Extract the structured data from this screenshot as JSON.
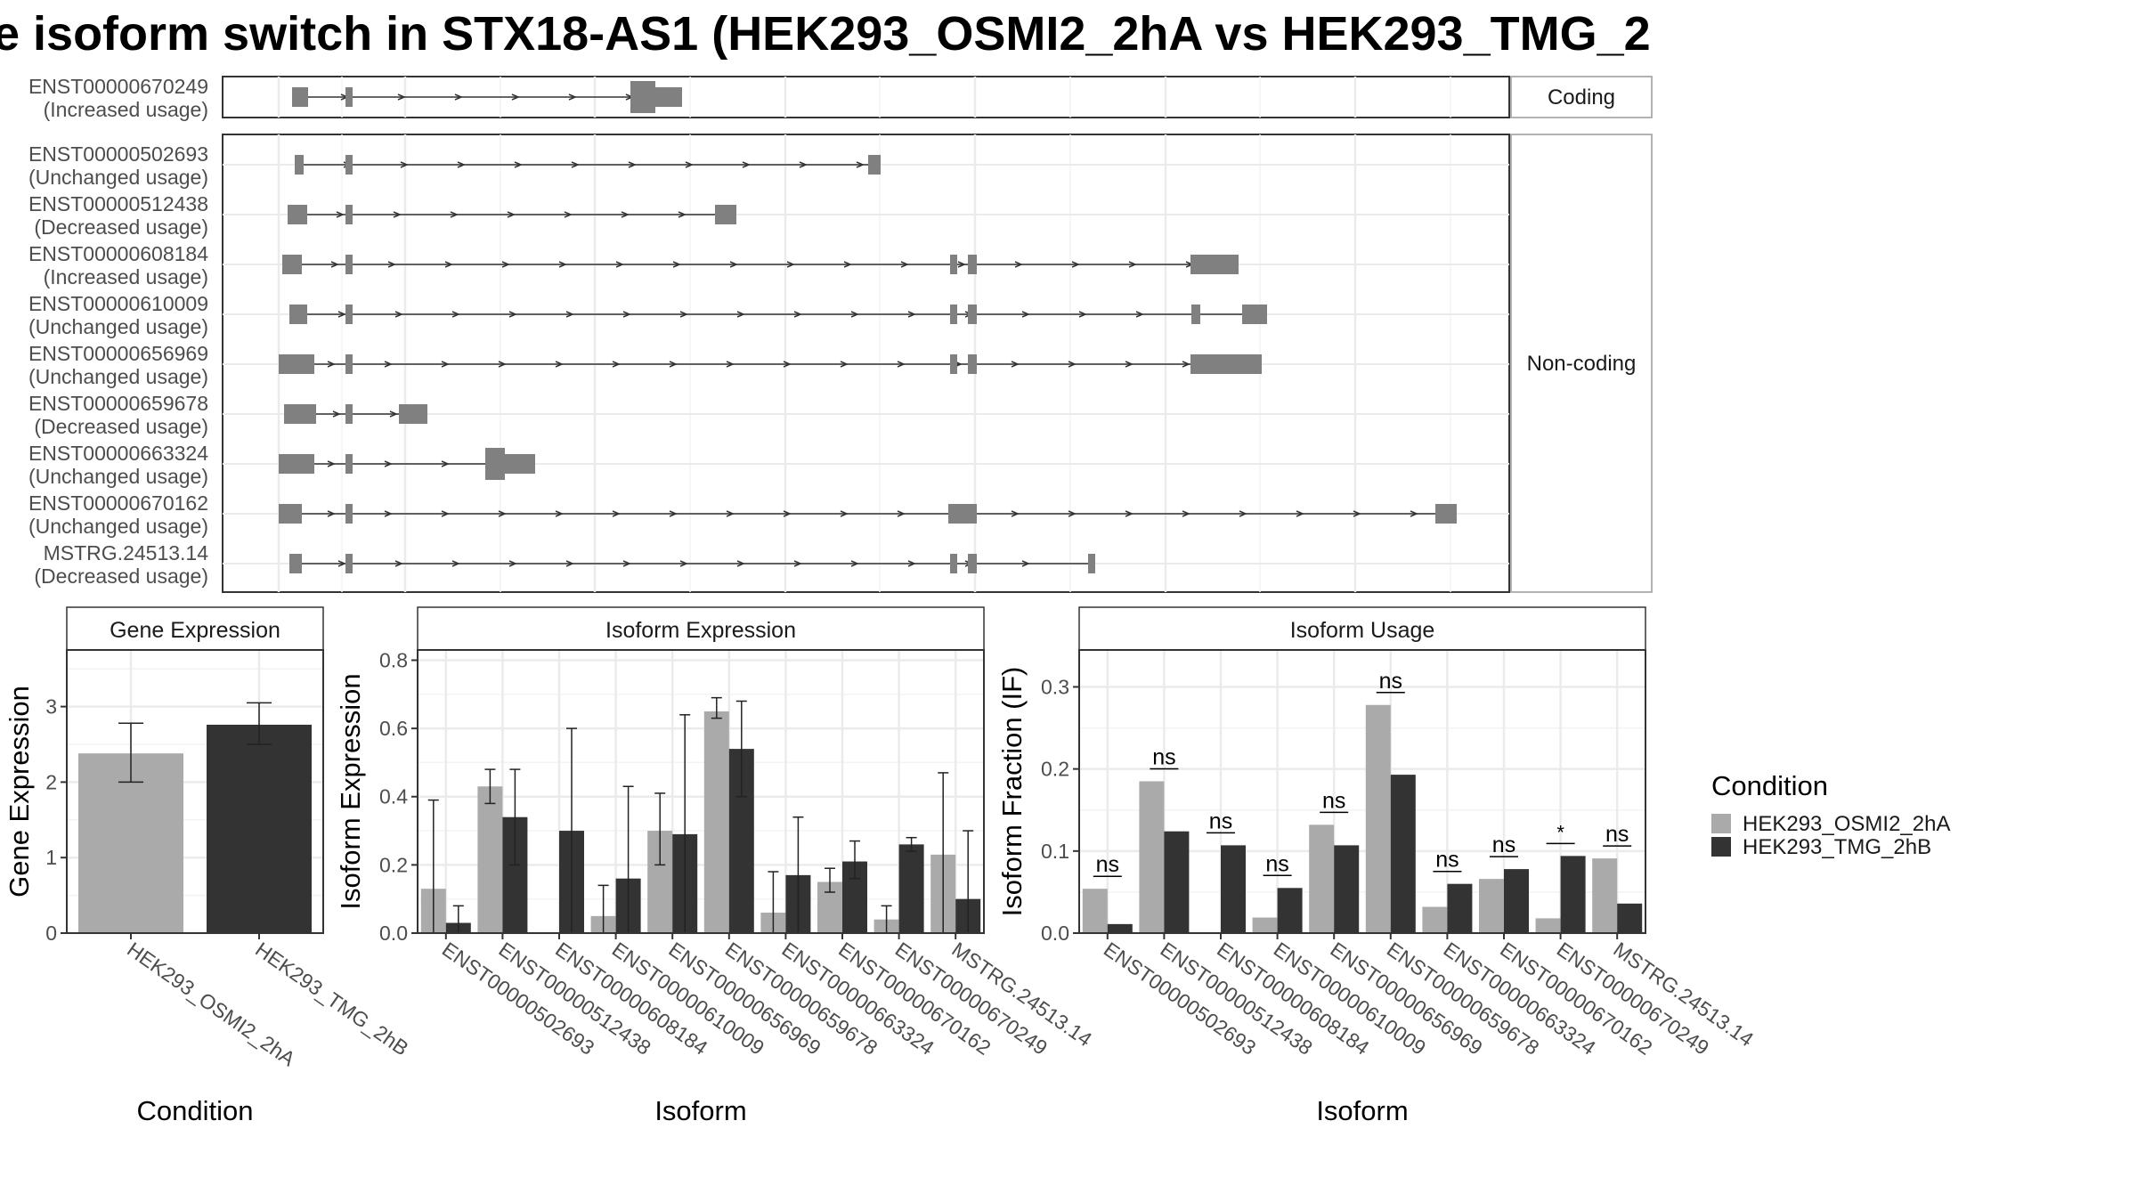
{
  "title": "e isoform switch in STX18-AS1 (HEK293_OSMI2_2hA vs HEK293_TMG_2",
  "colors": {
    "cond1": "#aaaaaa",
    "cond2": "#333333",
    "exon": "#808080",
    "panel_border": "#333333",
    "grid": "#ebebeb",
    "strip_fill": "#ffffff"
  },
  "structure": {
    "categories": [
      "Coding",
      "Non-coding"
    ],
    "isoforms": [
      {
        "id": "ENST00000670249",
        "status": "(Increased usage)",
        "category": "Coding"
      },
      {
        "id": "ENST00000502693",
        "status": "(Unchanged usage)",
        "category": "Non-coding"
      },
      {
        "id": "ENST00000512438",
        "status": "(Decreased usage)",
        "category": "Non-coding"
      },
      {
        "id": "ENST00000608184",
        "status": "(Increased usage)",
        "category": "Non-coding"
      },
      {
        "id": "ENST00000610009",
        "status": "(Unchanged usage)",
        "category": "Non-coding"
      },
      {
        "id": "ENST00000656969",
        "status": "(Unchanged usage)",
        "category": "Non-coding"
      },
      {
        "id": "ENST00000659678",
        "status": "(Decreased usage)",
        "category": "Non-coding"
      },
      {
        "id": "ENST00000663324",
        "status": "(Unchanged usage)",
        "category": "Non-coding"
      },
      {
        "id": "ENST00000670162",
        "status": "(Unchanged usage)",
        "category": "Non-coding"
      },
      {
        "id": "MSTRG.24513.14",
        "status": "(Decreased usage)",
        "category": "Non-coding"
      }
    ]
  },
  "chart_data": [
    {
      "type": "bar",
      "title": "Gene Expression",
      "xlabel": "Condition",
      "ylabel": "Gene Expression",
      "categories": [
        "HEK293_OSMI2_2hA",
        "HEK293_TMG_2hB"
      ],
      "values": [
        2.38,
        2.76
      ],
      "error": [
        [
          2.0,
          2.78
        ],
        [
          2.5,
          3.05
        ]
      ],
      "ylim": [
        0,
        3.75
      ],
      "yticks": [
        "0",
        "1",
        "2",
        "3"
      ]
    },
    {
      "type": "bar",
      "title": "Isoform Expression",
      "xlabel": "Isoform",
      "ylabel": "Isoform Expression",
      "categories": [
        "ENST00000502693",
        "ENST00000512438",
        "ENST00000608184",
        "ENST00000610009",
        "ENST00000656969",
        "ENST00000659678",
        "ENST00000663324",
        "ENST00000670162",
        "ENST00000670249",
        "MSTRG.24513.14"
      ],
      "series": [
        {
          "name": "HEK293_OSMI2_2hA",
          "values": [
            0.13,
            0.43,
            0.0,
            0.05,
            0.3,
            0.65,
            0.06,
            0.15,
            0.04,
            0.23
          ],
          "error": [
            [
              0.0,
              0.39
            ],
            [
              0.38,
              0.48
            ],
            [
              0.0,
              0.0
            ],
            [
              0.0,
              0.14
            ],
            [
              0.2,
              0.41
            ],
            [
              0.63,
              0.69
            ],
            [
              0.0,
              0.18
            ],
            [
              0.12,
              0.19
            ],
            [
              0.0,
              0.08
            ],
            [
              0.0,
              0.47
            ]
          ]
        },
        {
          "name": "HEK293_TMG_2hB",
          "values": [
            0.03,
            0.34,
            0.3,
            0.16,
            0.29,
            0.54,
            0.17,
            0.21,
            0.26,
            0.1
          ],
          "error": [
            [
              0.0,
              0.08
            ],
            [
              0.2,
              0.48
            ],
            [
              0.0,
              0.6
            ],
            [
              0.0,
              0.43
            ],
            [
              0.0,
              0.64
            ],
            [
              0.4,
              0.68
            ],
            [
              0.0,
              0.34
            ],
            [
              0.16,
              0.27
            ],
            [
              0.24,
              0.28
            ],
            [
              0.0,
              0.3
            ]
          ]
        }
      ],
      "ylim": [
        0,
        0.83
      ],
      "yticks": [
        "0.0",
        "0.2",
        "0.4",
        "0.6",
        "0.8"
      ]
    },
    {
      "type": "bar",
      "title": "Isoform Usage",
      "xlabel": "Isoform",
      "ylabel": "Isoform Fraction (IF)",
      "categories": [
        "ENST00000502693",
        "ENST00000512438",
        "ENST00000608184",
        "ENST00000610009",
        "ENST00000656969",
        "ENST00000659678",
        "ENST00000663324",
        "ENST00000670162",
        "ENST00000670249",
        "MSTRG.24513.14"
      ],
      "series": [
        {
          "name": "HEK293_OSMI2_2hA",
          "values": [
            0.054,
            0.185,
            0.0,
            0.019,
            0.132,
            0.278,
            0.032,
            0.066,
            0.018,
            0.091
          ]
        },
        {
          "name": "HEK293_TMG_2hB",
          "values": [
            0.011,
            0.124,
            0.107,
            0.055,
            0.107,
            0.193,
            0.06,
            0.078,
            0.094,
            0.036
          ]
        }
      ],
      "significance": [
        "ns",
        "ns",
        "ns",
        "ns",
        "ns",
        "ns",
        "ns",
        "ns",
        "*",
        "ns"
      ],
      "ylim": [
        0,
        0.345
      ],
      "yticks": [
        "0.0",
        "0.1",
        "0.2",
        "0.3"
      ]
    }
  ],
  "legend": {
    "title": "Condition",
    "entries": [
      "HEK293_OSMI2_2hA",
      "HEK293_TMG_2hB"
    ]
  }
}
